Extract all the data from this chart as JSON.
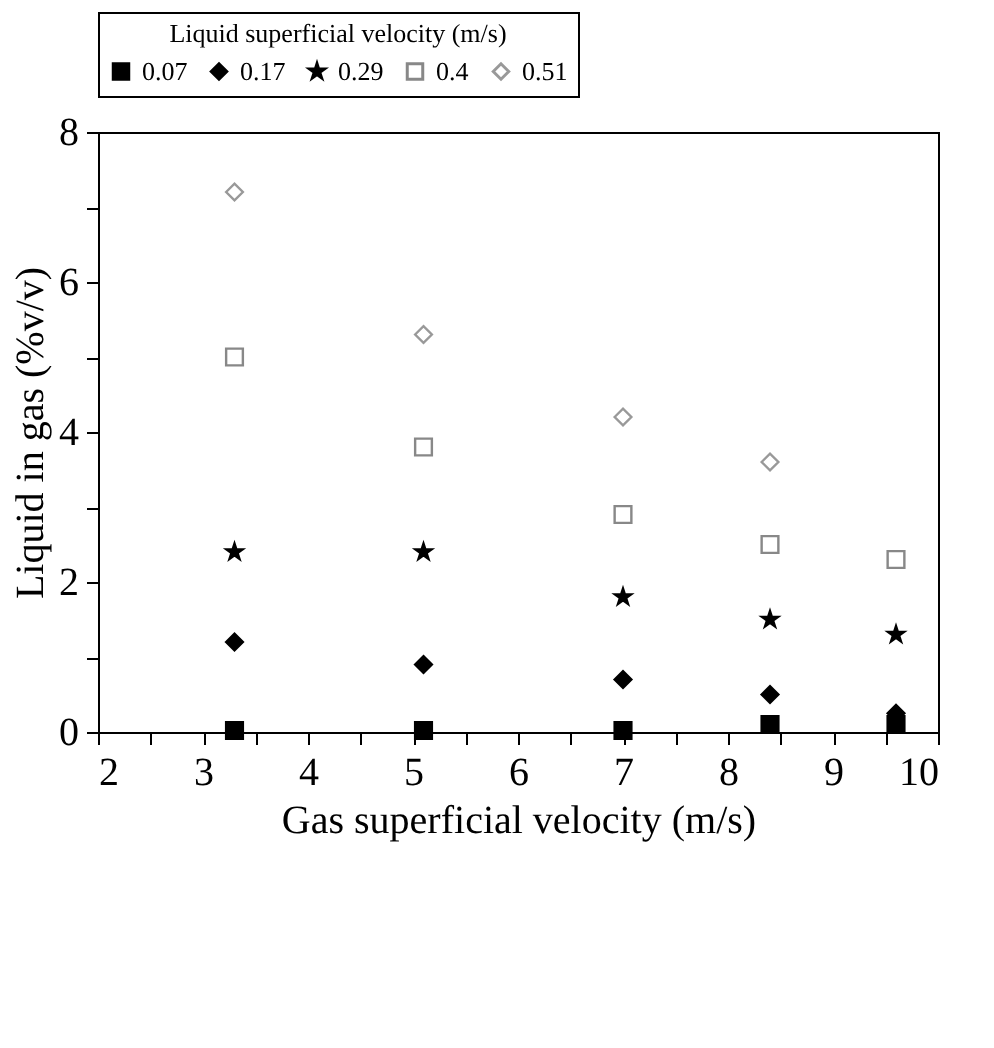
{
  "chart_data": {
    "type": "scatter",
    "xlabel": "Gas superficial velocity (m/s)",
    "ylabel": "Liquid in gas (%v/v)",
    "legend_title": "Liquid superficial velocity (m/s)",
    "legend": "top",
    "grid": false,
    "x": [
      3.3,
      5.1,
      7.0,
      8.4,
      9.6
    ],
    "xlim": [
      2,
      10
    ],
    "xticks": [
      2,
      {
        "value": 2.5,
        "label": null
      },
      3,
      {
        "value": 3.5,
        "label": null
      },
      4,
      {
        "value": 4.5,
        "label": null
      },
      5,
      {
        "value": 5.5,
        "label": null
      },
      6,
      {
        "value": 6.5,
        "label": null
      },
      7,
      {
        "value": 7.5,
        "label": null
      },
      8,
      {
        "value": 8.5,
        "label": null
      },
      9,
      {
        "value": 9.5,
        "label": null
      },
      10
    ],
    "ylim": [
      0,
      8
    ],
    "yticks": [
      0,
      {
        "value": 1,
        "label": null
      },
      2,
      {
        "value": 3,
        "label": null
      },
      4,
      {
        "value": 5,
        "label": null
      },
      6,
      {
        "value": 7,
        "label": null
      },
      8
    ],
    "series": [
      {
        "name": "0.07",
        "color": "#000000",
        "marker": "square",
        "values": [
          0.02,
          0.02,
          0.02,
          0.1,
          0.1
        ]
      },
      {
        "name": "0.17",
        "color": "#000000",
        "marker": "diamond",
        "values": [
          1.2,
          0.9,
          0.7,
          0.5,
          0.25
        ]
      },
      {
        "name": "0.29",
        "color": "#000000",
        "marker": "star",
        "values": [
          2.4,
          2.4,
          1.8,
          1.5,
          1.3
        ]
      },
      {
        "name": "0.4",
        "color": "#888888",
        "marker": "square",
        "values": [
          5.0,
          3.8,
          2.9,
          2.5,
          2.3
        ]
      },
      {
        "name": "0.51",
        "color": "#999999",
        "marker": "diamond",
        "values": [
          7.2,
          5.3,
          4.2,
          3.6,
          null
        ]
      }
    ]
  }
}
